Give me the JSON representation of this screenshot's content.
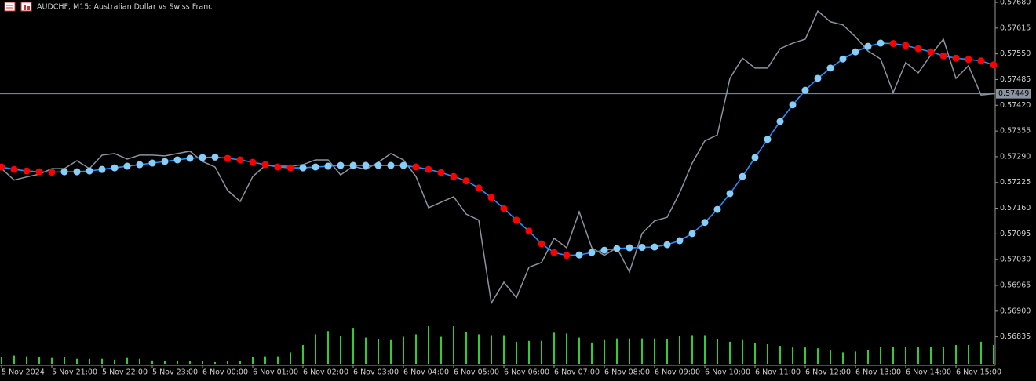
{
  "chart_data": {
    "type": "line",
    "title": "AUDCHF, M15:  Australian Dollar vs Swiss Franc",
    "categories": [
      "5 Nov 2024",
      null,
      null,
      null,
      "5 Nov 21:00",
      null,
      null,
      null,
      "5 Nov 22:00",
      null,
      null,
      null,
      "5 Nov 23:00",
      null,
      null,
      null,
      "6 Nov 00:00",
      null,
      null,
      null,
      "6 Nov 01:00",
      null,
      null,
      null,
      "6 Nov 02:00",
      null,
      null,
      null,
      "6 Nov 03:00",
      null,
      null,
      null,
      "6 Nov 04:00",
      null,
      null,
      null,
      "6 Nov 05:00",
      null,
      null,
      null,
      "6 Nov 06:00",
      null,
      null,
      null,
      "6 Nov 07:00",
      null,
      null,
      null,
      "6 Nov 08:00",
      null,
      null,
      null,
      "6 Nov 09:00",
      null,
      null,
      null,
      "6 Nov 10:00",
      null,
      null,
      null,
      "6 Nov 11:00",
      null,
      null,
      null,
      "6 Nov 12:00",
      null,
      null,
      null,
      "6 Nov 13:00",
      null,
      null,
      null,
      "6 Nov 14:00",
      null,
      null,
      null,
      "6 Nov 15:00",
      null,
      null,
      null
    ],
    "series": [
      {
        "color": "#8a93a0",
        "values": [
          0.5726,
          0.57231,
          0.57239,
          0.57246,
          0.5726,
          0.5726,
          0.5728,
          0.5726,
          0.57294,
          0.57298,
          0.57284,
          0.57294,
          0.57294,
          0.57292,
          0.57298,
          0.57304,
          0.57278,
          0.57264,
          0.57205,
          0.57177,
          0.5724,
          0.57268,
          0.57266,
          0.57266,
          0.5727,
          0.57282,
          0.57282,
          0.57244,
          0.57266,
          0.57258,
          0.57276,
          0.57298,
          0.57282,
          0.5724,
          0.57161,
          0.57175,
          0.57189,
          0.57145,
          0.5713,
          0.5692,
          0.56973,
          0.56934,
          0.57011,
          0.57023,
          0.57084,
          0.5706,
          0.57151,
          0.5706,
          0.57041,
          0.5706,
          0.56999,
          0.57096,
          0.57128,
          0.57137,
          0.57199,
          0.57274,
          0.5733,
          0.57345,
          0.57488,
          0.57539,
          0.57514,
          0.57514,
          0.57563,
          0.57577,
          0.57587,
          0.57658,
          0.57631,
          0.57623,
          0.57593,
          0.57557,
          0.57537,
          0.57452,
          0.57528,
          0.57502,
          0.57547,
          0.57587,
          0.57488,
          0.5752,
          0.57446,
          0.57449
        ]
      },
      {
        "color": "#1e90ff",
        "values": [
          0.57264,
          0.57258,
          0.57254,
          0.57252,
          0.57251,
          0.57252,
          0.57252,
          0.57254,
          0.57258,
          0.57262,
          0.57266,
          0.5727,
          0.57274,
          0.57278,
          0.57282,
          0.57286,
          0.57288,
          0.57289,
          0.57286,
          0.57282,
          0.57276,
          0.5727,
          0.57264,
          0.57262,
          0.57262,
          0.57264,
          0.57266,
          0.57268,
          0.57268,
          0.57268,
          0.57268,
          0.57268,
          0.57268,
          0.57264,
          0.57258,
          0.5725,
          0.5724,
          0.57229,
          0.57211,
          0.57187,
          0.57159,
          0.5713,
          0.57102,
          0.5707,
          0.57048,
          0.57041,
          0.57042,
          0.57048,
          0.57054,
          0.57058,
          0.5706,
          0.57061,
          0.57062,
          0.57068,
          0.57078,
          0.57096,
          0.57124,
          0.57157,
          0.57197,
          0.5724,
          0.57288,
          0.57334,
          0.57379,
          0.57421,
          0.57458,
          0.57488,
          0.57514,
          0.57537,
          0.57555,
          0.57569,
          0.57577,
          0.57576,
          0.57571,
          0.57563,
          0.57555,
          0.57545,
          0.57539,
          0.57536,
          0.57532,
          0.57522
        ],
        "point_colors": [
          "#ff0000",
          "#ff0000",
          "#ff0000",
          "#ff0000",
          "#ff0000",
          "#87cefa",
          "#87cefa",
          "#87cefa",
          "#87cefa",
          "#87cefa",
          "#87cefa",
          "#87cefa",
          "#87cefa",
          "#87cefa",
          "#87cefa",
          "#87cefa",
          "#87cefa",
          "#87cefa",
          "#ff0000",
          "#ff0000",
          "#ff0000",
          "#ff0000",
          "#ff0000",
          "#ff0000",
          "#87cefa",
          "#87cefa",
          "#87cefa",
          "#87cefa",
          "#87cefa",
          "#87cefa",
          "#87cefa",
          "#87cefa",
          "#87cefa",
          "#ff0000",
          "#ff0000",
          "#ff0000",
          "#ff0000",
          "#ff0000",
          "#ff0000",
          "#ff0000",
          "#ff0000",
          "#ff0000",
          "#ff0000",
          "#ff0000",
          "#ff0000",
          "#ff0000",
          "#87cefa",
          "#87cefa",
          "#87cefa",
          "#87cefa",
          "#87cefa",
          "#87cefa",
          "#87cefa",
          "#87cefa",
          "#87cefa",
          "#87cefa",
          "#87cefa",
          "#87cefa",
          "#87cefa",
          "#87cefa",
          "#87cefa",
          "#87cefa",
          "#87cefa",
          "#87cefa",
          "#87cefa",
          "#87cefa",
          "#87cefa",
          "#87cefa",
          "#87cefa",
          "#87cefa",
          "#87cefa",
          "#ff0000",
          "#ff0000",
          "#ff0000",
          "#ff0000",
          "#ff0000",
          "#ff0000",
          "#ff0000",
          "#ff0000",
          "#ff0000"
        ]
      }
    ],
    "volume": {
      "color": "#32cd32",
      "values": [
        8,
        10,
        9,
        8,
        7,
        8,
        6,
        6,
        6,
        5,
        7,
        6,
        4,
        3,
        4,
        3,
        3,
        2,
        3,
        3,
        8,
        9,
        9,
        14,
        23,
        36,
        40,
        34,
        43,
        32,
        30,
        29,
        33,
        36,
        46,
        33,
        46,
        39,
        36,
        35,
        35,
        27,
        28,
        28,
        38,
        37,
        32,
        26,
        29,
        31,
        31,
        31,
        31,
        30,
        34,
        35,
        35,
        30,
        27,
        29,
        25,
        24,
        22,
        20,
        20,
        19,
        17,
        14,
        15,
        17,
        21,
        21,
        21,
        20,
        21,
        21,
        23,
        23,
        27,
        23
      ]
    },
    "current_price": 0.57449,
    "ylim": [
      0.56763,
      0.57686
    ],
    "yticks": [
      {
        "value": 0.5768,
        "label": "0.57680"
      },
      0.57615,
      {
        "value": 0.5755,
        "label": "0.57550"
      },
      0.57485,
      {
        "value": 0.5742,
        "label": "0.57420"
      },
      0.57355,
      {
        "value": 0.5729,
        "label": "0.57290"
      },
      0.57225,
      {
        "value": 0.5716,
        "label": "0.57160"
      },
      0.57095,
      {
        "value": 0.5703,
        "label": "0.57030"
      },
      0.56965,
      {
        "value": 0.569,
        "label": "0.56900"
      },
      0.56835
    ]
  }
}
